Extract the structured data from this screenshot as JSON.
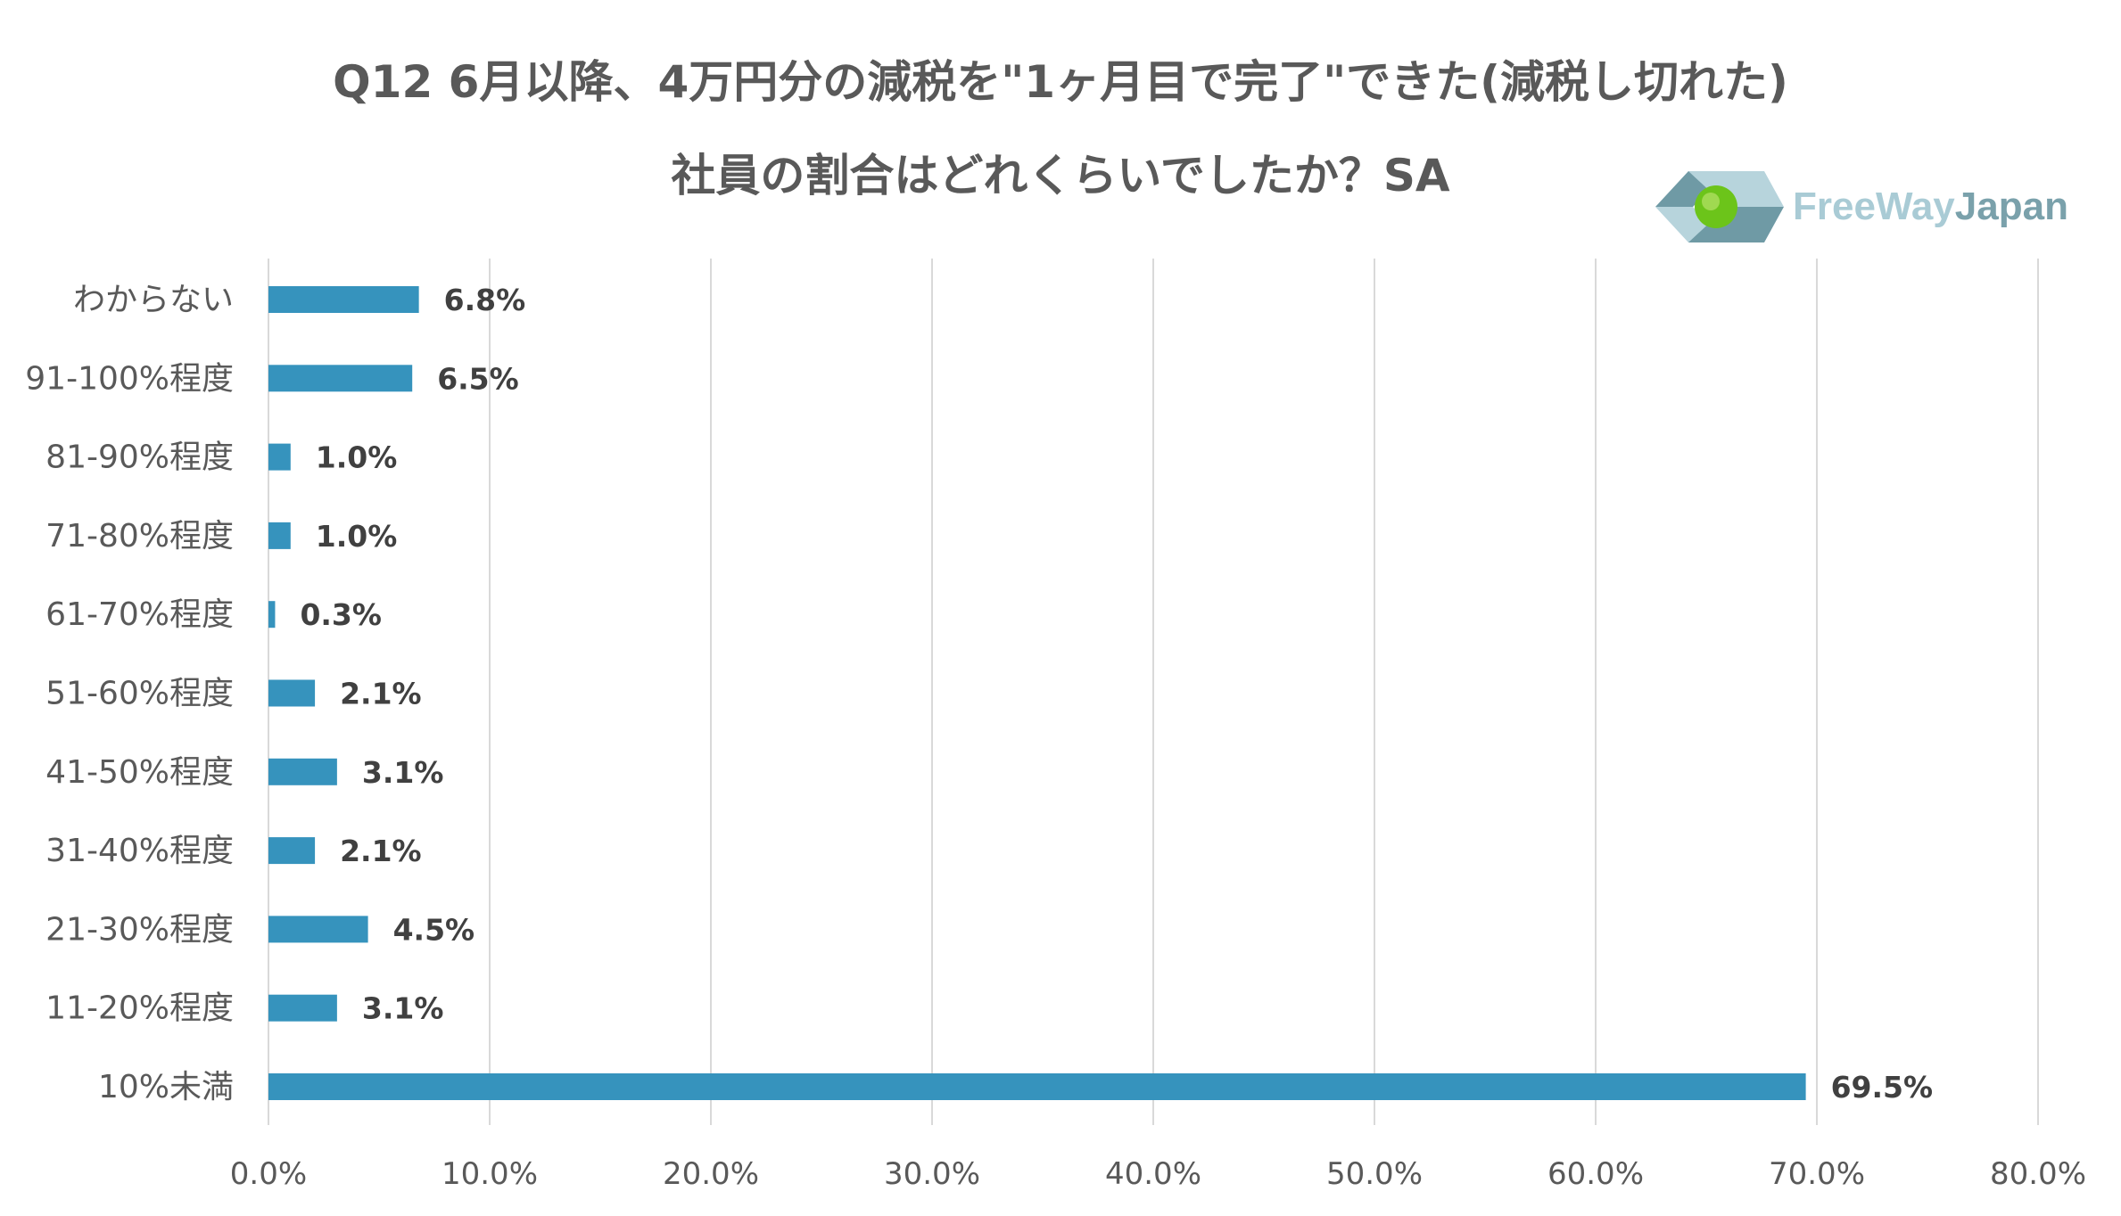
{
  "title_lines": [
    "Q12 6月以降、4万円分の減税を\"1ヶ月目で完了\"できた(減税し切れた)",
    "社員の割合はどれくらいでしたか？SA"
  ],
  "logo": {
    "text_part1": "FreeWay",
    "text_part2": "Japan",
    "icon": "freewayjapan-logo-icon",
    "colors": {
      "light": "#b7d4dc",
      "dark": "#6f9aa5",
      "green": "#6cc41a",
      "text1": "#a9cbd5",
      "text2": "#7aa1ab"
    }
  },
  "chart_data": {
    "type": "bar",
    "orientation": "horizontal",
    "categories": [
      "わからない",
      "91-100%程度",
      "81-90%程度",
      "71-80%程度",
      "61-70%程度",
      "51-60%程度",
      "41-50%程度",
      "31-40%程度",
      "21-30%程度",
      "11-20%程度",
      "10%未満"
    ],
    "values": [
      6.8,
      6.5,
      1.0,
      1.0,
      0.3,
      2.1,
      3.1,
      2.1,
      4.5,
      3.1,
      69.5
    ],
    "data_labels": [
      "6.8%",
      "6.5%",
      "1.0%",
      "1.0%",
      "0.3%",
      "2.1%",
      "3.1%",
      "2.1%",
      "4.5%",
      "3.1%",
      "69.5%"
    ],
    "xlim": [
      0,
      80
    ],
    "x_ticks": [
      0,
      10,
      20,
      30,
      40,
      50,
      60,
      70,
      80
    ],
    "x_tick_labels": [
      "0.0%",
      "10.0%",
      "20.0%",
      "30.0%",
      "40.0%",
      "50.0%",
      "60.0%",
      "70.0%",
      "80.0%"
    ],
    "grid": "vertical",
    "bar_color": "#3693bd",
    "grid_color": "#d9d9d9"
  }
}
